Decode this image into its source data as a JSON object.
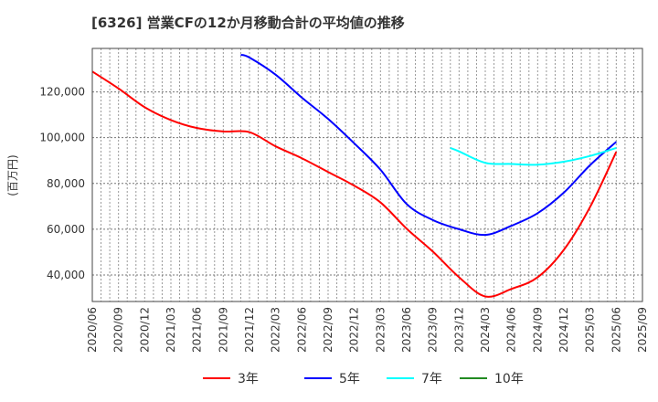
{
  "chart_data": {
    "type": "line",
    "title": "[6326]  営業CFの12か月移動合計の平均値の推移",
    "ylabel": "(百万円)",
    "xlabel": "",
    "ylim": [
      28400,
      139000
    ],
    "xlim": [
      "2020/06",
      "2025/09"
    ],
    "grid": true,
    "legend_position": "bottom",
    "y_ticks": [
      40000,
      60000,
      80000,
      100000,
      120000
    ],
    "y_tick_labels": [
      "40,000",
      "60,000",
      "80,000",
      "100,000",
      "120,000"
    ],
    "x_tick_labels": [
      "2020/06",
      "2020/09",
      "2020/12",
      "2021/03",
      "2021/06",
      "2021/09",
      "2021/12",
      "2022/03",
      "2022/06",
      "2022/09",
      "2022/12",
      "2023/03",
      "2023/06",
      "2023/09",
      "2023/12",
      "2024/03",
      "2024/06",
      "2024/09",
      "2024/12",
      "2025/03",
      "2025/06",
      "2025/09"
    ],
    "series": [
      {
        "name": "3年",
        "color": "#ff0000",
        "x": [
          "2020/06",
          "2020/09",
          "2020/12",
          "2021/03",
          "2021/06",
          "2021/09",
          "2021/12",
          "2022/03",
          "2022/06",
          "2022/09",
          "2022/12",
          "2023/03",
          "2023/06",
          "2023/09",
          "2023/12",
          "2024/03",
          "2024/06",
          "2024/09",
          "2024/12",
          "2025/03",
          "2025/06"
        ],
        "values": [
          128900,
          121500,
          113300,
          107700,
          104200,
          102700,
          102400,
          96200,
          91000,
          85000,
          79000,
          71700,
          60200,
          50200,
          39000,
          30600,
          33900,
          39000,
          51000,
          69700,
          93800
        ]
      },
      {
        "name": "5年",
        "color": "#0000ff",
        "x": [
          "2021/11",
          "2021/12",
          "2022/03",
          "2022/06",
          "2022/09",
          "2022/12",
          "2023/03",
          "2023/06",
          "2023/09",
          "2023/12",
          "2024/03",
          "2024/06",
          "2024/09",
          "2024/12",
          "2025/03",
          "2025/06"
        ],
        "values": [
          136200,
          135000,
          127500,
          117500,
          108200,
          97500,
          86000,
          71000,
          64000,
          60000,
          57500,
          61500,
          67000,
          76000,
          88000,
          98200
        ]
      },
      {
        "name": "7年",
        "color": "#00ffff",
        "x": [
          "2023/11",
          "2023/12",
          "2024/03",
          "2024/06",
          "2024/09",
          "2024/12",
          "2025/03",
          "2025/06"
        ],
        "values": [
          95500,
          94000,
          89000,
          88500,
          88200,
          89500,
          92000,
          95500
        ]
      },
      {
        "name": "10年",
        "color": "#228b22",
        "x": [],
        "values": []
      }
    ]
  }
}
